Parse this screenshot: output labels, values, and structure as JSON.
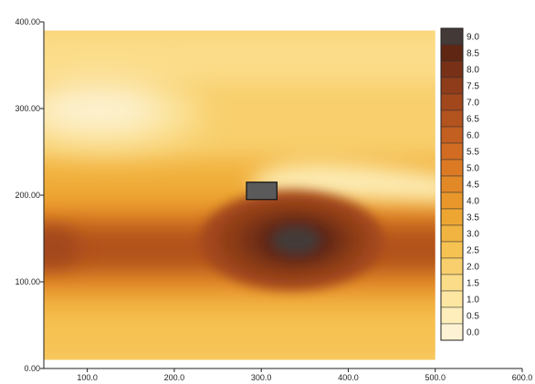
{
  "chart_data": {
    "type": "heatmap",
    "title": "",
    "xlabel": "",
    "ylabel": "",
    "xlim": [
      50,
      600
    ],
    "ylim": [
      0,
      400
    ],
    "plot_extent": {
      "x": [
        50,
        500
      ],
      "y": [
        10,
        390
      ]
    },
    "grid": false,
    "legend_placement": "right",
    "x_ticks": [
      "100.0",
      "200.0",
      "300.0",
      "400.0",
      "500.0",
      "600.0"
    ],
    "x_tick_values": [
      100,
      200,
      300,
      400,
      500,
      600
    ],
    "y_ticks": [
      "0.00",
      "100.00",
      "200.00",
      "300.00",
      "400.00"
    ],
    "y_tick_values": [
      0,
      100,
      200,
      300,
      400
    ],
    "legend": {
      "levels": [
        "0.0",
        "0.5",
        "1.0",
        "1.5",
        "2.0",
        "2.5",
        "3.0",
        "3.5",
        "4.0",
        "4.5",
        "5.0",
        "5.5",
        "6.0",
        "6.5",
        "7.0",
        "7.5",
        "8.0",
        "8.5",
        "9.0"
      ],
      "colors": [
        "#fdf3d4",
        "#fdeebb",
        "#fce6a2",
        "#fbdc88",
        "#f8cf6c",
        "#f6c252",
        "#f2b440",
        "#eea633",
        "#e9972b",
        "#e38827",
        "#dc7a24",
        "#d16c22",
        "#c35f20",
        "#b3531e",
        "#a2471c",
        "#8e3c19",
        "#783117",
        "#5f2614",
        "#433a37"
      ]
    },
    "obstacle": {
      "x": [
        283,
        318
      ],
      "y": [
        195,
        215
      ],
      "color": "#5a5a5a"
    },
    "field_features": [
      {
        "name": "background",
        "value": 1.8
      },
      {
        "name": "low_upper_left",
        "x": 120,
        "y": 295,
        "value": 0.2
      },
      {
        "name": "low_wake_band",
        "x": 420,
        "y": 205,
        "value": 0.3
      },
      {
        "name": "high_band",
        "y": 140,
        "value": 6.5
      },
      {
        "name": "peak",
        "x": 340,
        "y": 148,
        "value": 9.0
      }
    ]
  }
}
